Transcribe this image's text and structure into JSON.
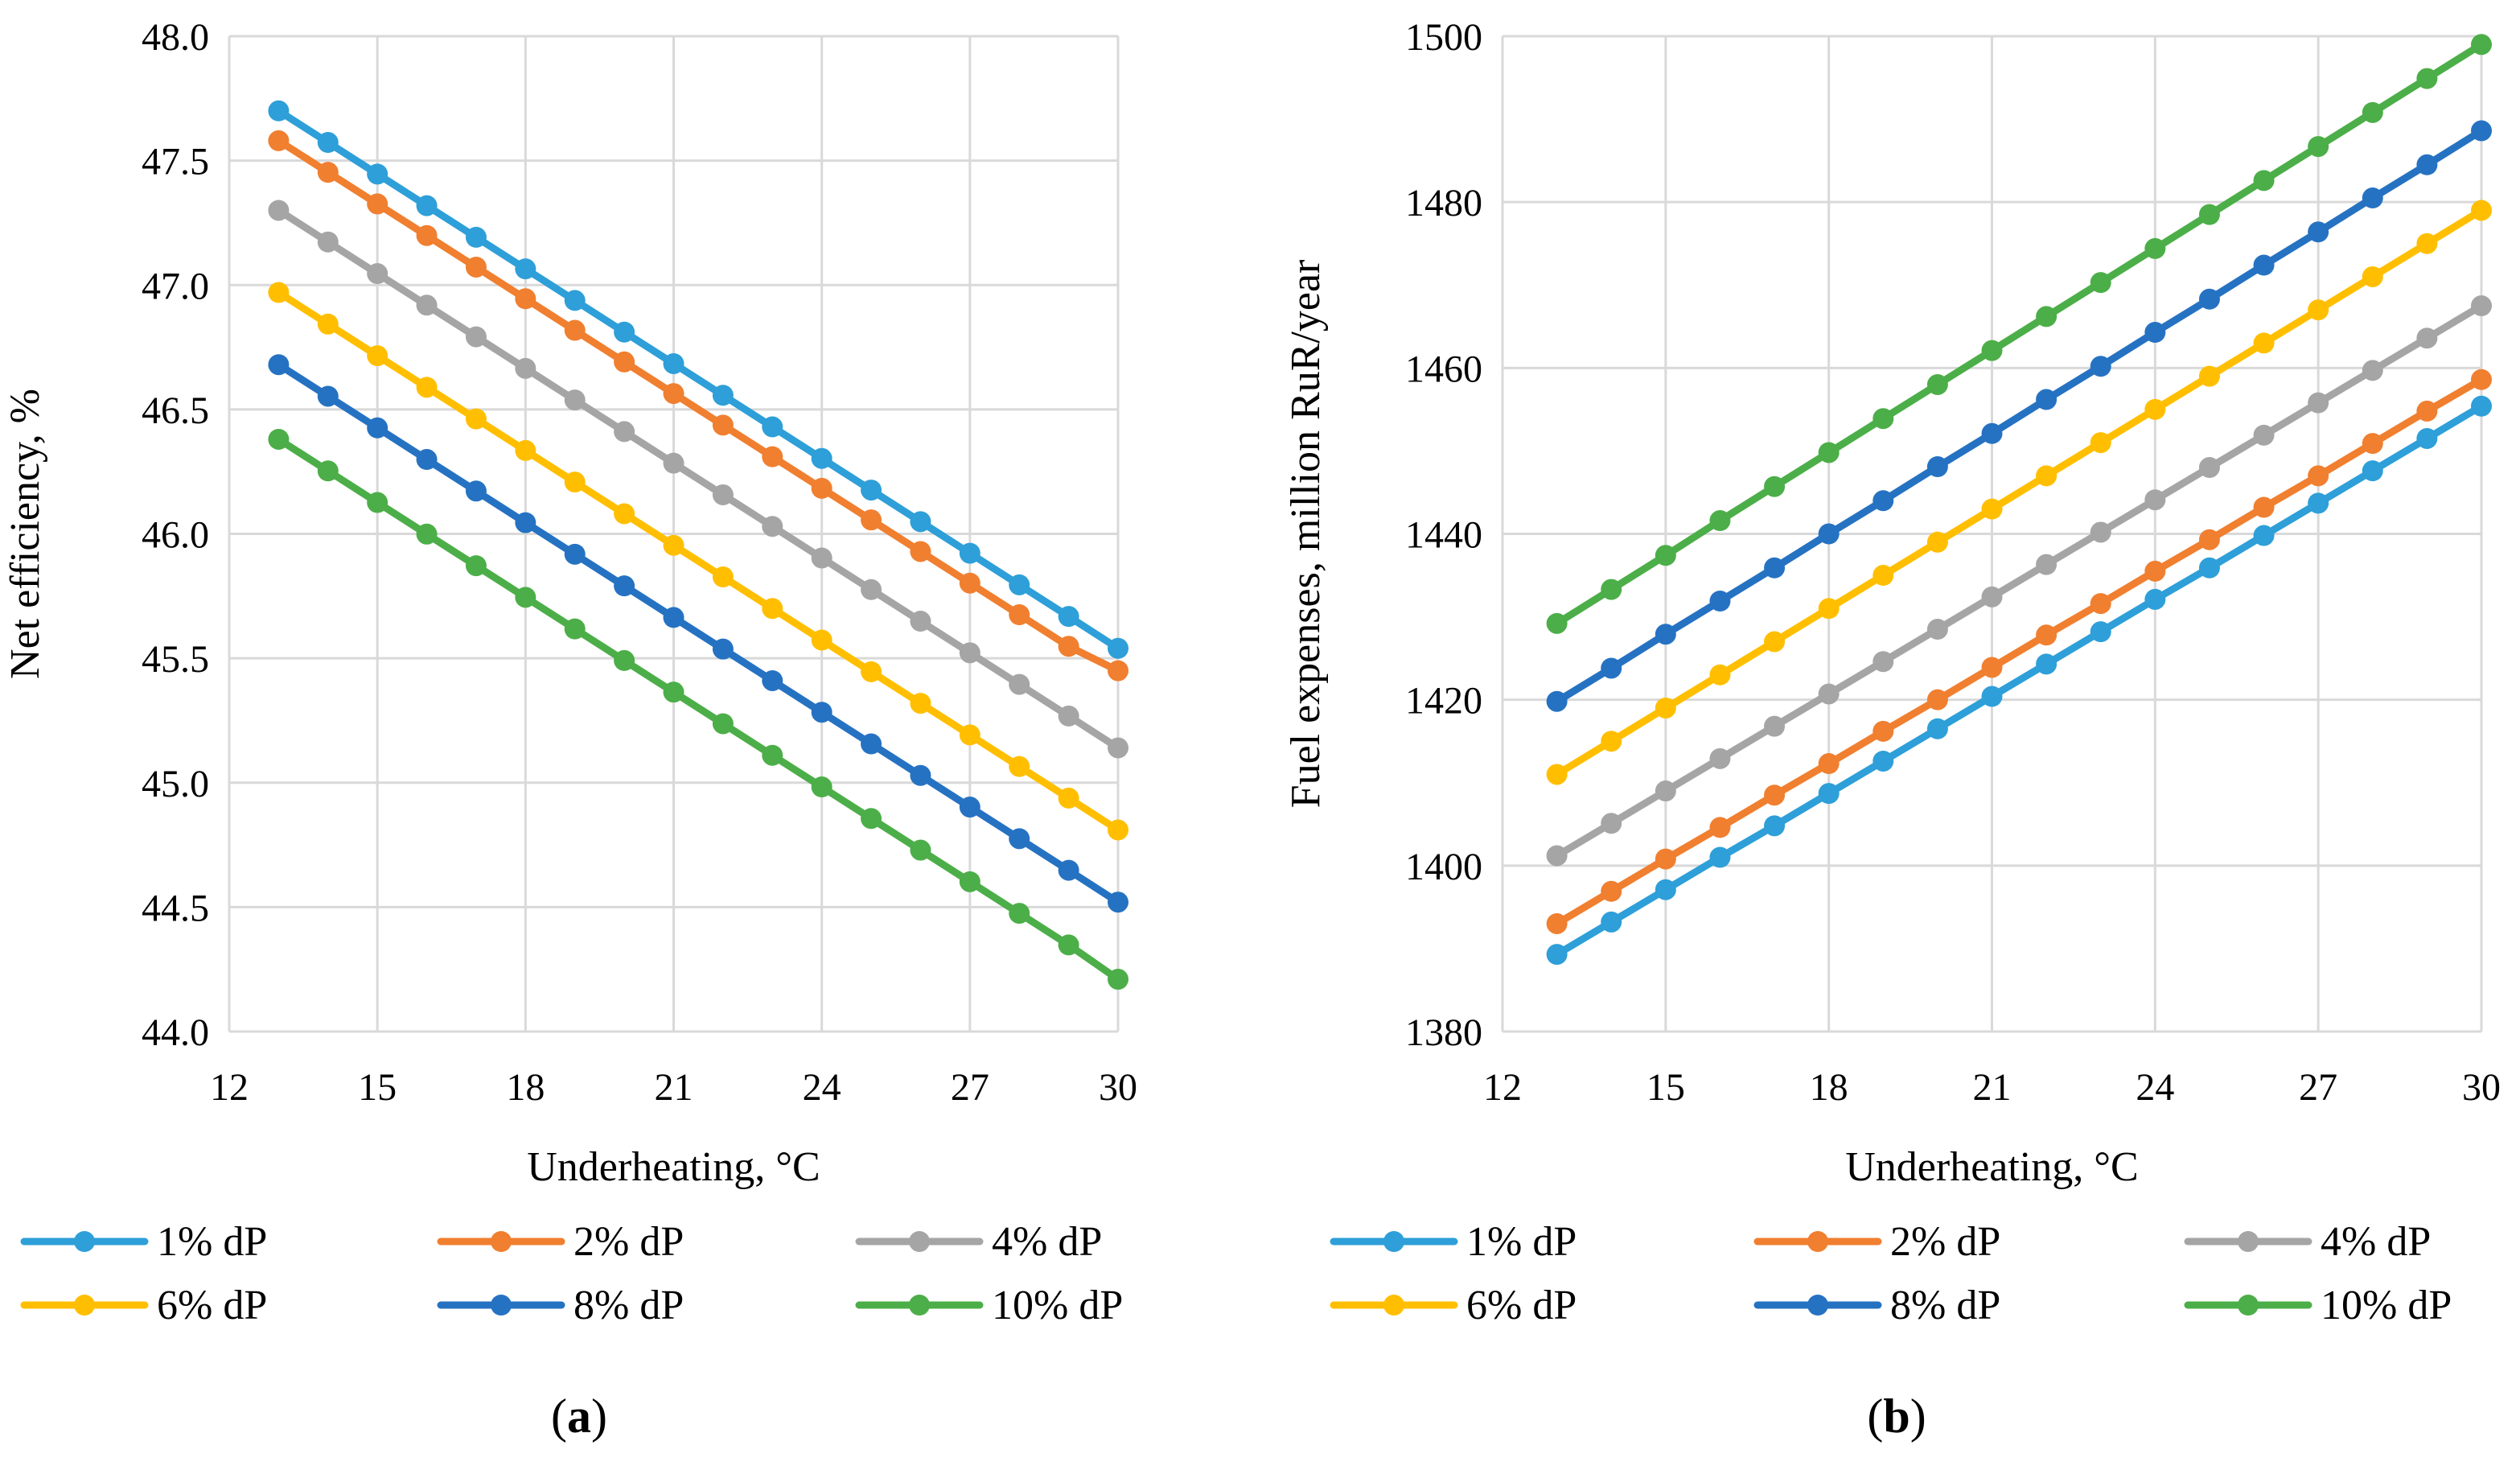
{
  "chart_data": [
    {
      "type": "line",
      "panel_label": "a",
      "title": "",
      "xlabel": "Underheating, °C",
      "ylabel": "Net efficiency, %",
      "xlim": [
        12,
        30
      ],
      "ylim": [
        44.0,
        48.0
      ],
      "x_ticks": [
        "12",
        "15",
        "18",
        "21",
        "24",
        "27",
        "30"
      ],
      "y_ticks": [
        "44.0",
        "44.5",
        "45.0",
        "45.5",
        "46.0",
        "46.5",
        "47.0",
        "47.5",
        "48.0"
      ],
      "grid": true,
      "legend_position": "bottom",
      "x": [
        13,
        14,
        15,
        16,
        17,
        18,
        19,
        20,
        21,
        22,
        23,
        24,
        25,
        26,
        27,
        28,
        29,
        30
      ],
      "series": [
        {
          "name": "1% dP",
          "color": "#2e9fd8",
          "values": [
            47.7,
            47.573,
            47.446,
            47.319,
            47.192,
            47.065,
            46.938,
            46.811,
            46.684,
            46.557,
            46.43,
            46.303,
            46.176,
            46.049,
            45.922,
            45.795,
            45.668,
            45.54
          ]
        },
        {
          "name": "2% dP",
          "color": "#f07f30",
          "values": [
            47.58,
            47.453,
            47.326,
            47.199,
            47.072,
            46.945,
            46.818,
            46.691,
            46.564,
            46.437,
            46.31,
            46.183,
            46.056,
            45.929,
            45.802,
            45.675,
            45.548,
            45.45
          ]
        },
        {
          "name": "4% dP",
          "color": "#a5a5a5",
          "values": [
            47.3,
            47.173,
            47.046,
            46.919,
            46.792,
            46.665,
            46.538,
            46.411,
            46.284,
            46.157,
            46.03,
            45.903,
            45.776,
            45.649,
            45.522,
            45.395,
            45.268,
            45.14
          ]
        },
        {
          "name": "6% dP",
          "color": "#ffbf00",
          "values": [
            46.97,
            46.843,
            46.716,
            46.589,
            46.462,
            46.335,
            46.208,
            46.081,
            45.954,
            45.827,
            45.7,
            45.573,
            45.446,
            45.319,
            45.192,
            45.065,
            44.938,
            44.81
          ]
        },
        {
          "name": "8% dP",
          "color": "#2672c2",
          "values": [
            46.68,
            46.553,
            46.426,
            46.299,
            46.172,
            46.045,
            45.918,
            45.791,
            45.664,
            45.537,
            45.41,
            45.283,
            45.156,
            45.029,
            44.902,
            44.775,
            44.648,
            44.52
          ]
        },
        {
          "name": "10% dP",
          "color": "#4cae48",
          "values": [
            46.38,
            46.253,
            46.126,
            45.999,
            45.872,
            45.745,
            45.618,
            45.491,
            45.364,
            45.237,
            45.11,
            44.983,
            44.856,
            44.729,
            44.602,
            44.475,
            44.348,
            44.21
          ]
        }
      ]
    },
    {
      "type": "line",
      "panel_label": "b",
      "title": "",
      "xlabel": "Underheating, °C",
      "ylabel": "Fuel expenses, million RuR/year",
      "xlim": [
        12,
        30
      ],
      "ylim": [
        1380,
        1500
      ],
      "x_ticks": [
        "12",
        "15",
        "18",
        "21",
        "24",
        "27",
        "30"
      ],
      "y_ticks": [
        "1380",
        "1400",
        "1420",
        "1440",
        "1460",
        "1480",
        "1500"
      ],
      "grid": true,
      "legend_position": "bottom",
      "x": [
        13,
        14,
        15,
        16,
        17,
        18,
        19,
        20,
        21,
        22,
        23,
        24,
        25,
        26,
        27,
        28,
        29,
        30
      ],
      "series": [
        {
          "name": "1% dP",
          "color": "#2e9fd8",
          "values": [
            1389.3,
            1393.2,
            1397.1,
            1401.0,
            1404.8,
            1408.7,
            1412.6,
            1416.5,
            1420.4,
            1424.3,
            1428.2,
            1432.1,
            1435.9,
            1439.8,
            1443.7,
            1447.6,
            1451.5,
            1455.4
          ]
        },
        {
          "name": "2% dP",
          "color": "#f07f30",
          "values": [
            1393.0,
            1396.9,
            1400.8,
            1404.6,
            1408.5,
            1412.3,
            1416.2,
            1420.0,
            1423.9,
            1427.8,
            1431.6,
            1435.5,
            1439.3,
            1443.2,
            1447.0,
            1450.9,
            1454.8,
            1458.6
          ]
        },
        {
          "name": "4% dP",
          "color": "#a5a5a5",
          "values": [
            1401.2,
            1405.1,
            1409.0,
            1412.9,
            1416.8,
            1420.7,
            1424.6,
            1428.5,
            1432.4,
            1436.3,
            1440.2,
            1444.1,
            1448.0,
            1451.9,
            1455.8,
            1459.7,
            1463.6,
            1467.5
          ]
        },
        {
          "name": "6% dP",
          "color": "#ffbf00",
          "values": [
            1411.0,
            1415.0,
            1419.0,
            1423.0,
            1427.0,
            1431.0,
            1435.0,
            1439.0,
            1443.0,
            1447.0,
            1451.0,
            1455.0,
            1459.0,
            1463.0,
            1467.0,
            1471.0,
            1475.0,
            1479.0
          ]
        },
        {
          "name": "8% dP",
          "color": "#2672c2",
          "values": [
            1419.8,
            1423.8,
            1427.9,
            1431.9,
            1435.9,
            1440.0,
            1444.0,
            1448.1,
            1452.1,
            1456.2,
            1460.2,
            1464.3,
            1468.3,
            1472.4,
            1476.4,
            1480.5,
            1484.5,
            1488.6
          ]
        },
        {
          "name": "10% dP",
          "color": "#4cae48",
          "values": [
            1429.2,
            1433.3,
            1437.4,
            1441.6,
            1445.7,
            1449.8,
            1453.9,
            1458.0,
            1462.1,
            1466.2,
            1470.3,
            1474.4,
            1478.5,
            1482.6,
            1486.7,
            1490.8,
            1494.9,
            1499.0
          ]
        }
      ]
    }
  ]
}
